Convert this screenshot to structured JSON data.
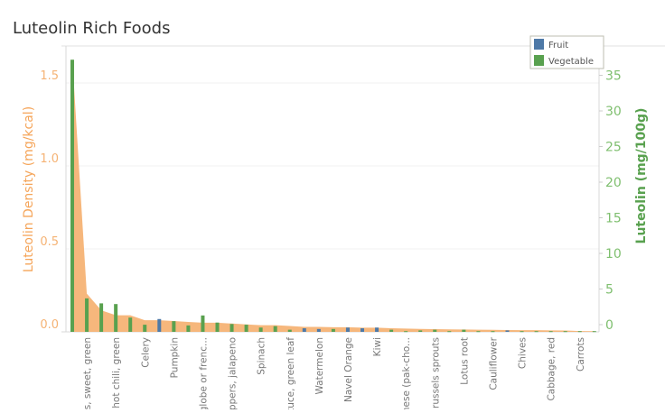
{
  "chart_data": {
    "type": "bar",
    "title": "Luteolin Rich Foods",
    "ylabel_left": "Luteolin Density (mg/kcal)",
    "ylabel_right": "Luteolin (mg/100g)",
    "ylim_left": [
      0,
      1.7
    ],
    "ylim_right": [
      0,
      38
    ],
    "yticks_left": [
      "0.0",
      "0.5",
      "1.0",
      "1.5"
    ],
    "yticks_right": [
      "0",
      "5",
      "10",
      "15",
      "20",
      "25",
      "30",
      "35"
    ],
    "grid": true,
    "legend": {
      "placement": "top-right",
      "entries": [
        {
          "name": "Fruit",
          "color": "#4e79a7"
        },
        {
          "name": "Vegetable",
          "color": "#59a14f"
        }
      ]
    },
    "density_color": "#f5b375",
    "tick_labels": [
      "",
      "rs, sweet, green",
      "",
      "hot chili, green",
      "",
      "Celery",
      "",
      "Pumpkin",
      "",
      "(globe or frenc...",
      "",
      "ppers, jalapeno",
      "",
      "Spinach",
      "",
      "tuce, green leaf",
      "",
      "Watermelon",
      "",
      "Navel Orange",
      "",
      "Kiwi",
      "",
      "inese (pak-cho...",
      "",
      "russels sprouts",
      "",
      "Lotus root",
      "",
      "Cauliflower",
      "",
      "Chives",
      "",
      "Cabbage, red",
      "",
      "Carrots",
      ""
    ],
    "series": [
      {
        "name": "Luteolin (mg/100g)",
        "axis": "right",
        "type": "bar",
        "values": [
          38.2,
          4.7,
          4.0,
          3.9,
          2.0,
          1.0,
          1.8,
          1.5,
          0.9,
          2.3,
          1.3,
          1.1,
          1.0,
          0.6,
          0.8,
          0.3,
          0.5,
          0.4,
          0.4,
          0.6,
          0.5,
          0.6,
          0.3,
          0.1,
          0.2,
          0.3,
          0.1,
          0.3,
          0.1,
          0.1,
          0.2,
          0.1,
          0.1,
          0.1,
          0.1,
          0.1,
          0.1
        ],
        "group": [
          "Vegetable",
          "Vegetable",
          "Vegetable",
          "Vegetable",
          "Vegetable",
          "Vegetable",
          "Fruit",
          "Vegetable",
          "Vegetable",
          "Vegetable",
          "Vegetable",
          "Vegetable",
          "Vegetable",
          "Vegetable",
          "Vegetable",
          "Vegetable",
          "Fruit",
          "Fruit",
          "Vegetable",
          "Fruit",
          "Fruit",
          "Fruit",
          "Vegetable",
          "Vegetable",
          "Vegetable",
          "Vegetable",
          "Vegetable",
          "Vegetable",
          "Vegetable",
          "Vegetable",
          "Fruit",
          "Vegetable",
          "Vegetable",
          "Vegetable",
          "Vegetable",
          "Vegetable",
          "Vegetable"
        ]
      },
      {
        "name": "Luteolin Density (mg/kcal)",
        "axis": "left",
        "type": "area",
        "values": [
          1.65,
          0.23,
          0.13,
          0.1,
          0.1,
          0.07,
          0.07,
          0.065,
          0.06,
          0.055,
          0.055,
          0.05,
          0.045,
          0.04,
          0.04,
          0.035,
          0.03,
          0.03,
          0.028,
          0.028,
          0.025,
          0.025,
          0.022,
          0.02,
          0.018,
          0.016,
          0.015,
          0.014,
          0.013,
          0.012,
          0.011,
          0.01,
          0.01,
          0.009,
          0.008,
          0.005,
          0.004
        ]
      }
    ]
  }
}
